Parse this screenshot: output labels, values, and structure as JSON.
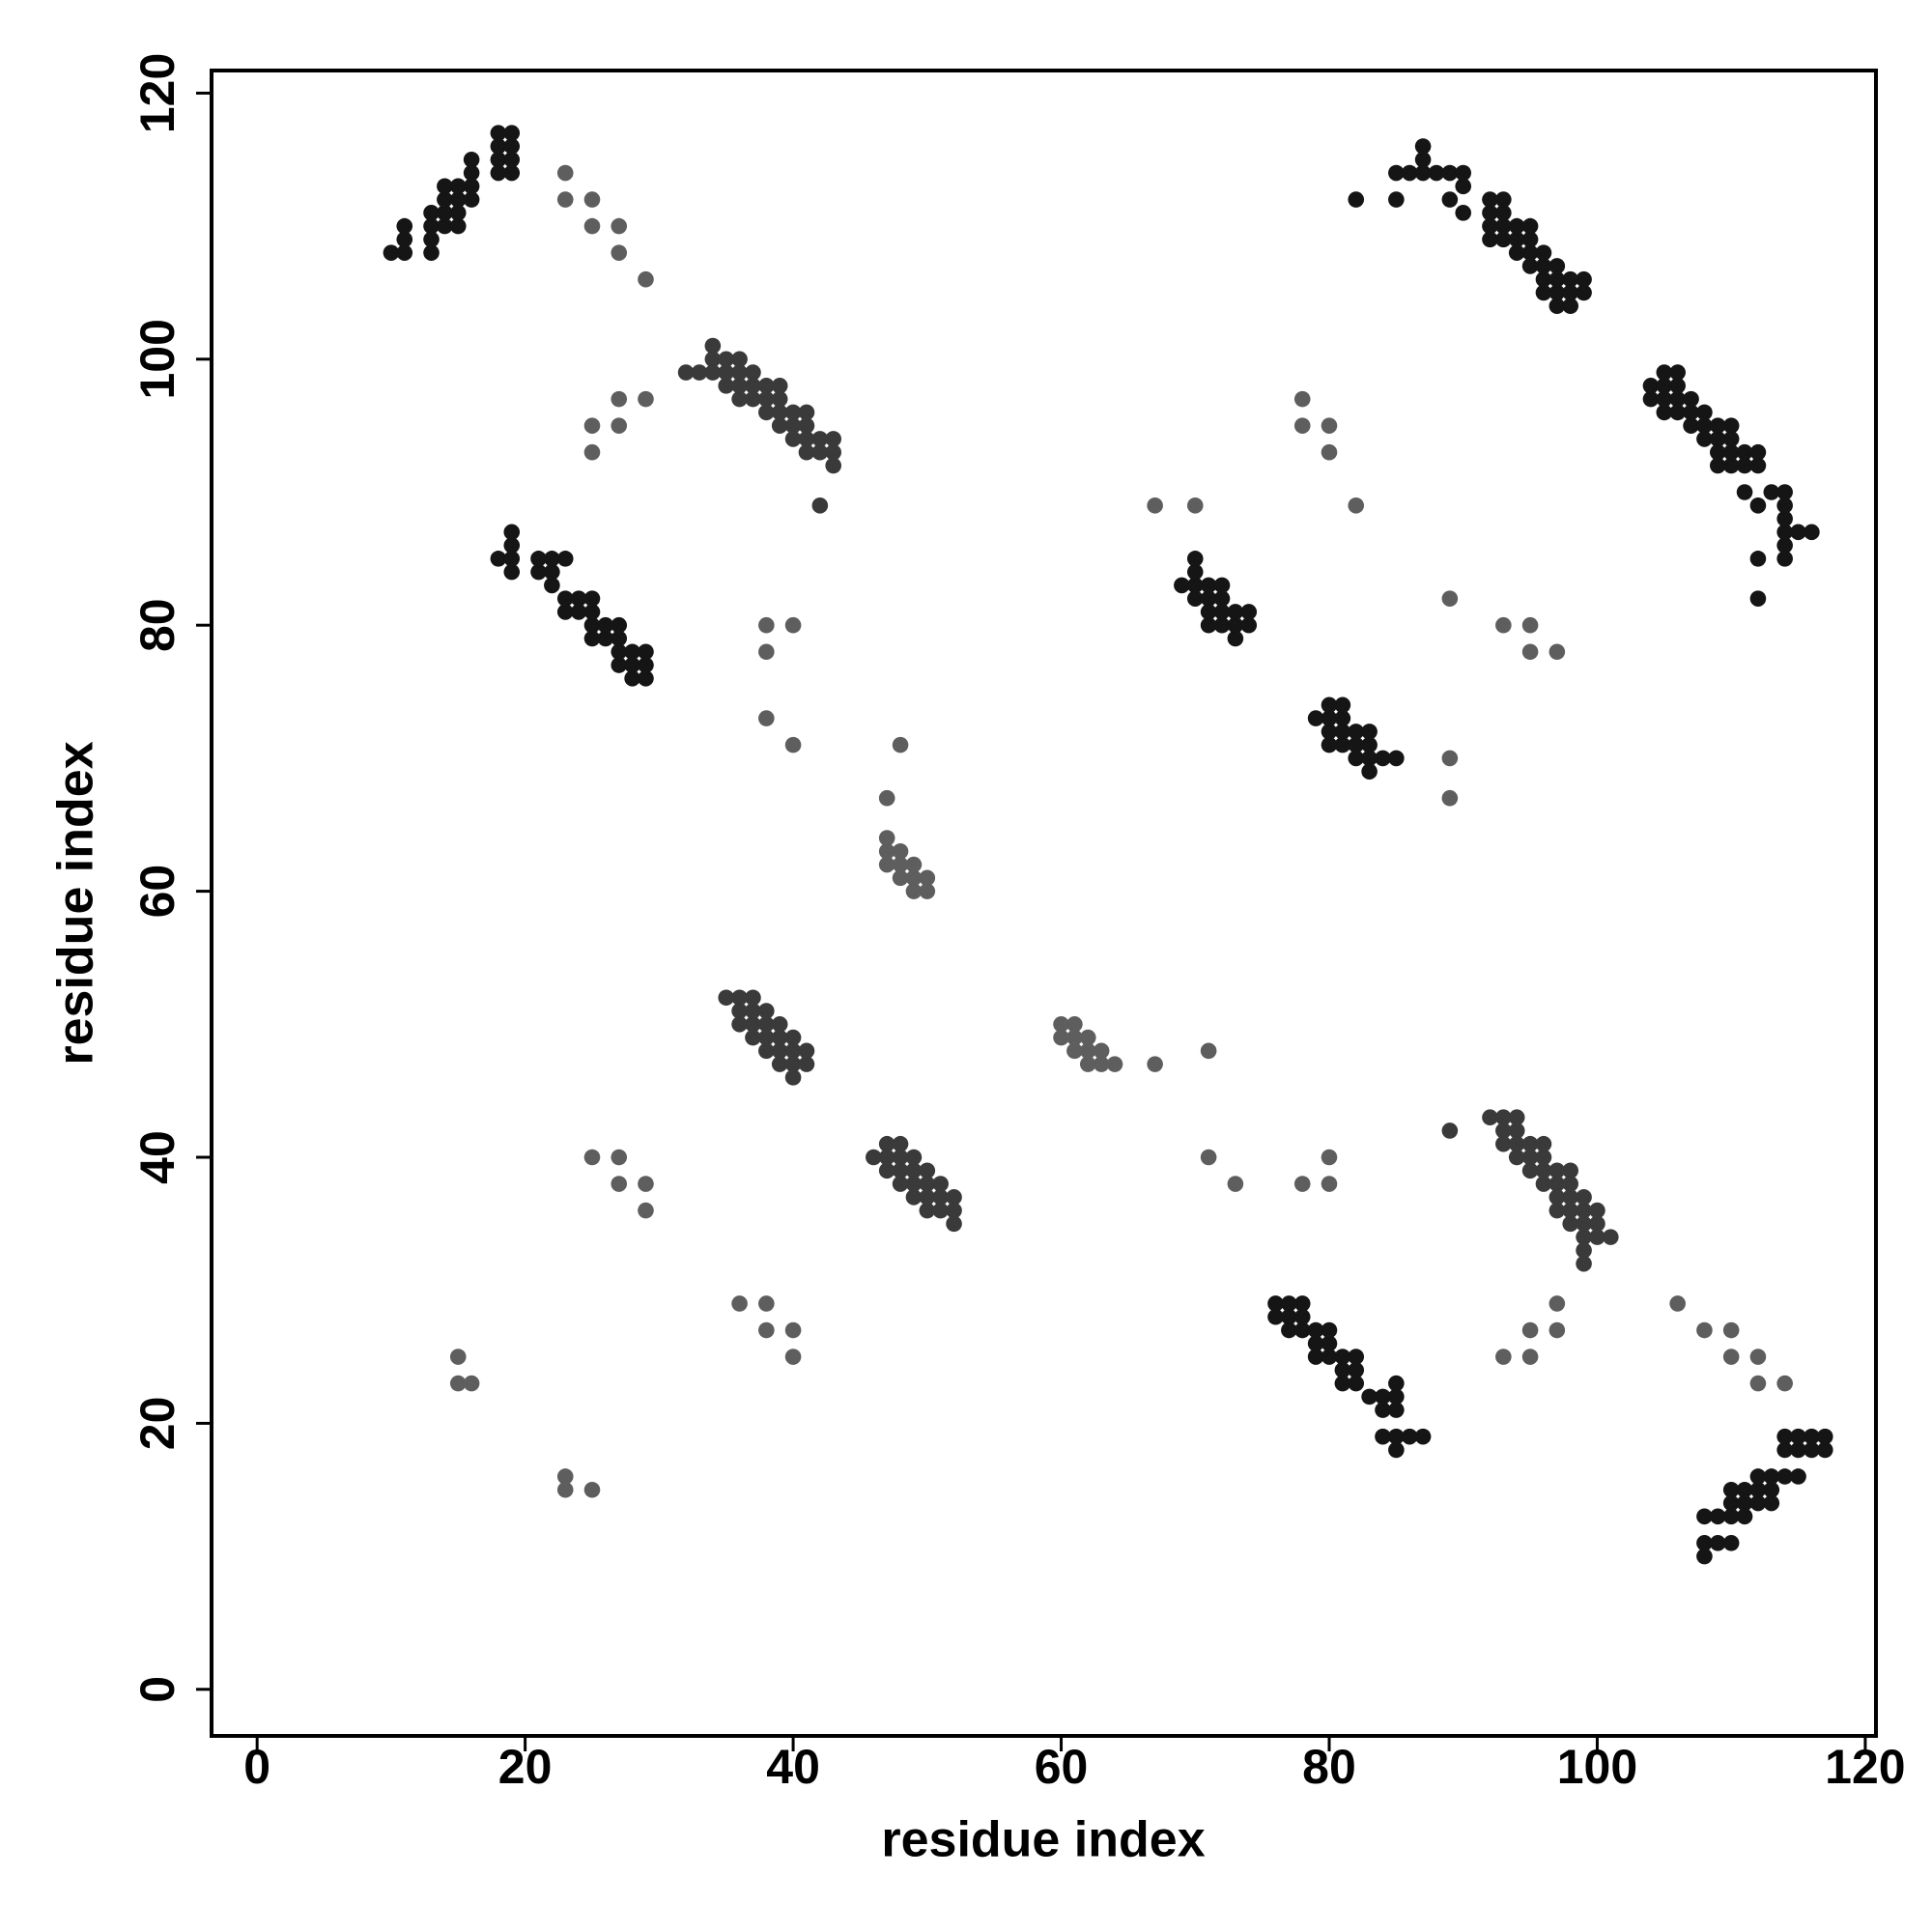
{
  "chart_data": {
    "type": "scatter",
    "x_label": "residue index",
    "y_label": "residue index",
    "xlim": [
      -3.4,
      120.8
    ],
    "ylim": [
      -3.5,
      121.7
    ],
    "xticks": [
      0,
      20,
      40,
      60,
      80,
      100,
      120
    ],
    "yticks": [
      0,
      20,
      40,
      60,
      80,
      100,
      120
    ],
    "series": [
      {
        "color": "#151515",
        "x": [
          10,
          11,
          11,
          11,
          13,
          13,
          13,
          13,
          14,
          14,
          14,
          14,
          15,
          15,
          15,
          15,
          16,
          16,
          16,
          16,
          18,
          18,
          18,
          18,
          19,
          19,
          19,
          19,
          108,
          108,
          109,
          110,
          108,
          109,
          110,
          111,
          110,
          111,
          112,
          113,
          110,
          111,
          112,
          113,
          112,
          113,
          114,
          115,
          114,
          115,
          116,
          117,
          114,
          115,
          116,
          117,
          18,
          19,
          19,
          19,
          19,
          21,
          21,
          22,
          22,
          22,
          23,
          23,
          23,
          24,
          24,
          25,
          25,
          25,
          25,
          26,
          26,
          27,
          27,
          27,
          27,
          28,
          28,
          28,
          29,
          29,
          29,
          85,
          84,
          85,
          86,
          87,
          84,
          85,
          83,
          84,
          85,
          81,
          82,
          85,
          81,
          82,
          79,
          80,
          81,
          82,
          79,
          80,
          77,
          78,
          79,
          80,
          76,
          77,
          78,
          76,
          77,
          78,
          82,
          85,
          85,
          86,
          87,
          87,
          87,
          88,
          89,
          89,
          90,
          90,
          90,
          92,
          92,
          92,
          92,
          93,
          93,
          93,
          93,
          94,
          94,
          94,
          95,
          95,
          95,
          95,
          96,
          96,
          96,
          96,
          97,
          97,
          97,
          97,
          98,
          98,
          98,
          99,
          99,
          112,
          112,
          114,
          114,
          114,
          115,
          116,
          114,
          112,
          114,
          111,
          113,
          114,
          109,
          110,
          111,
          112,
          109,
          110,
          111,
          112,
          108,
          109,
          110,
          107,
          108,
          109,
          110,
          105,
          106,
          107,
          108,
          104,
          105,
          106,
          107,
          104,
          105,
          106,
          105,
          106,
          69,
          70,
          70,
          70,
          70,
          71,
          71,
          71,
          71,
          72,
          72,
          72,
          72,
          73,
          73,
          73,
          74,
          74,
          83,
          82,
          83,
          84,
          85,
          80,
          81,
          82,
          83,
          80,
          81,
          82,
          83,
          79,
          80,
          81,
          80,
          81
        ],
        "values": [
          108,
          108,
          109,
          110,
          108,
          109,
          110,
          111,
          110,
          111,
          112,
          113,
          110,
          111,
          112,
          113,
          112,
          113,
          114,
          115,
          114,
          115,
          116,
          117,
          114,
          115,
          116,
          117,
          10,
          11,
          11,
          11,
          13,
          13,
          13,
          13,
          14,
          14,
          14,
          14,
          15,
          15,
          15,
          15,
          16,
          16,
          16,
          16,
          18,
          18,
          18,
          18,
          19,
          19,
          19,
          19,
          85,
          84,
          85,
          86,
          87,
          84,
          85,
          83,
          84,
          85,
          81,
          82,
          85,
          81,
          82,
          79,
          80,
          81,
          82,
          79,
          80,
          77,
          78,
          79,
          80,
          76,
          77,
          78,
          76,
          77,
          78,
          18,
          19,
          19,
          19,
          19,
          21,
          21,
          22,
          22,
          22,
          23,
          23,
          23,
          24,
          24,
          25,
          25,
          25,
          25,
          26,
          26,
          27,
          27,
          27,
          27,
          28,
          28,
          28,
          29,
          29,
          29,
          112,
          112,
          114,
          114,
          114,
          115,
          116,
          114,
          112,
          114,
          111,
          113,
          114,
          109,
          110,
          111,
          112,
          109,
          110,
          111,
          112,
          108,
          109,
          110,
          107,
          108,
          109,
          110,
          105,
          106,
          107,
          108,
          104,
          105,
          106,
          107,
          104,
          105,
          106,
          105,
          106,
          82,
          85,
          85,
          86,
          87,
          87,
          87,
          88,
          89,
          89,
          90,
          90,
          90,
          92,
          92,
          92,
          92,
          93,
          93,
          93,
          93,
          94,
          94,
          94,
          95,
          95,
          95,
          95,
          96,
          96,
          96,
          96,
          97,
          97,
          97,
          97,
          98,
          98,
          98,
          99,
          99,
          83,
          82,
          83,
          84,
          85,
          80,
          81,
          82,
          83,
          80,
          81,
          82,
          83,
          79,
          80,
          81,
          80,
          81,
          69,
          70,
          70,
          70,
          70,
          71,
          71,
          71,
          71,
          72,
          72,
          72,
          72,
          73,
          73,
          73,
          74,
          74
        ]
      },
      {
        "color": "#3a3a3a",
        "x": [
          32,
          33,
          34,
          34,
          34,
          35,
          35,
          35,
          36,
          36,
          36,
          36,
          37,
          37,
          37,
          38,
          38,
          38,
          39,
          39,
          39,
          39,
          40,
          40,
          40,
          41,
          41,
          41,
          41,
          42,
          42,
          42,
          43,
          43,
          43,
          99,
          99,
          99,
          100,
          101,
          98,
          99,
          100,
          97,
          98,
          99,
          100,
          97,
          98,
          99,
          96,
          97,
          98,
          95,
          96,
          97,
          98,
          94,
          95,
          96,
          93,
          94,
          95,
          96,
          93,
          94,
          89,
          92,
          93,
          94,
          35,
          36,
          36,
          36,
          37,
          37,
          37,
          37,
          38,
          38,
          38,
          38,
          39,
          39,
          39,
          39,
          40,
          40,
          40,
          40,
          41,
          41,
          52,
          50,
          51,
          52,
          49,
          50,
          51,
          52,
          48,
          49,
          50,
          51,
          47,
          48,
          49,
          50,
          46,
          47,
          48,
          49,
          47,
          48
        ],
        "values": [
          99,
          99,
          99,
          100,
          101,
          98,
          99,
          100,
          97,
          98,
          99,
          100,
          97,
          98,
          99,
          96,
          97,
          98,
          95,
          96,
          97,
          98,
          94,
          95,
          96,
          93,
          94,
          95,
          96,
          93,
          94,
          89,
          92,
          93,
          94,
          32,
          33,
          34,
          34,
          34,
          35,
          35,
          35,
          36,
          36,
          36,
          36,
          37,
          37,
          37,
          38,
          38,
          38,
          39,
          39,
          39,
          39,
          40,
          40,
          40,
          41,
          41,
          41,
          41,
          42,
          42,
          42,
          43,
          43,
          43,
          52,
          50,
          51,
          52,
          49,
          50,
          51,
          52,
          48,
          49,
          50,
          51,
          47,
          48,
          49,
          50,
          46,
          47,
          48,
          49,
          47,
          48,
          35,
          36,
          36,
          36,
          37,
          37,
          37,
          37,
          38,
          38,
          38,
          38,
          39,
          39,
          39,
          39,
          40,
          40,
          40,
          40,
          41,
          41
        ]
      },
      {
        "color": "#5e5e5e",
        "x": [
          23,
          23,
          25,
          25,
          27,
          27,
          29,
          25,
          25,
          27,
          27,
          29,
          38,
          38,
          40,
          38,
          40,
          78,
          78,
          80,
          80,
          82,
          67,
          70,
          25,
          27,
          27,
          29,
          29,
          15,
          15,
          16,
          48,
          114,
          112,
          112,
          110,
          110,
          108,
          106,
          95,
          93,
          97,
          95,
          97,
          80,
          78,
          80,
          73,
          71,
          97,
          95,
          95,
          93,
          89,
          89,
          89,
          40,
          40,
          38,
          38,
          36,
          25,
          23,
          23,
          71,
          47,
          47,
          47,
          47,
          48,
          48,
          48,
          49,
          49,
          49,
          50,
          50,
          67,
          64,
          62,
          63,
          61,
          62,
          63,
          60,
          61,
          62,
          60,
          61
        ],
        "values": [
          114,
          112,
          112,
          110,
          110,
          108,
          106,
          95,
          93,
          97,
          95,
          97,
          80,
          78,
          80,
          73,
          71,
          97,
          95,
          95,
          93,
          89,
          89,
          89,
          40,
          40,
          38,
          38,
          36,
          25,
          23,
          23,
          71,
          23,
          23,
          25,
          25,
          27,
          27,
          29,
          25,
          25,
          27,
          27,
          29,
          38,
          38,
          40,
          38,
          40,
          78,
          78,
          80,
          80,
          82,
          67,
          70,
          25,
          27,
          27,
          29,
          29,
          15,
          15,
          16,
          48,
          67,
          64,
          62,
          63,
          61,
          62,
          63,
          60,
          61,
          62,
          60,
          61,
          47,
          47,
          47,
          47,
          48,
          48,
          48,
          49,
          49,
          49,
          50,
          50
        ]
      }
    ]
  }
}
